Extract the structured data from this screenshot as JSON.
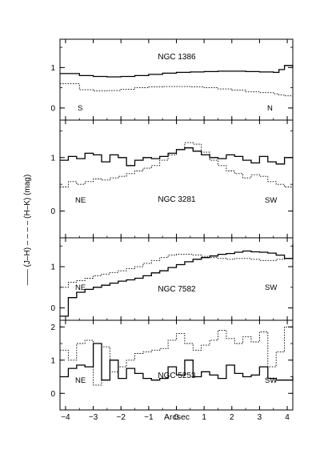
{
  "figure": {
    "ylabel": "—— (J–H)   – – – – (H–K) (mag)",
    "xlabel": "Arcsec"
  },
  "chart_data": {
    "type": "line",
    "style": "step",
    "shared_x_axis": {
      "label": "Arcsec",
      "range": [
        -4.2,
        4.2
      ],
      "ticks": [
        -4,
        -3,
        -2,
        -1,
        0,
        1,
        2,
        3,
        4
      ],
      "tick_labels": [
        "−4",
        "−3",
        "−2",
        "−1",
        "0",
        "1",
        "2",
        "3",
        "4"
      ]
    },
    "series_encoding": {
      "solid": "(J–H)",
      "dotted": "(H–K)"
    },
    "panels": [
      {
        "title": "NGC 1386",
        "left_label": "S",
        "right_label": "N",
        "ylim": [
          -0.3,
          1.7
        ],
        "yticks": [
          0,
          1
        ],
        "x": [
          -4.2,
          -3.5,
          -3.0,
          -2.5,
          -2.0,
          -1.5,
          -1.0,
          -0.5,
          0.0,
          0.5,
          1.0,
          1.5,
          2.0,
          2.5,
          3.0,
          3.5,
          3.7,
          3.9,
          4.2
        ],
        "series": [
          {
            "name": "(J–H)",
            "style": "solid",
            "values": [
              0.85,
              0.8,
              0.78,
              0.77,
              0.78,
              0.8,
              0.83,
              0.86,
              0.88,
              0.89,
              0.9,
              0.91,
              0.91,
              0.9,
              0.89,
              0.88,
              0.95,
              1.05,
              1.0
            ]
          },
          {
            "name": "(H–K)",
            "style": "dotted",
            "values": [
              0.6,
              0.45,
              0.42,
              0.43,
              0.46,
              0.5,
              0.52,
              0.53,
              0.53,
              0.52,
              0.5,
              0.47,
              0.44,
              0.4,
              0.38,
              0.35,
              0.32,
              0.3,
              0.28
            ]
          }
        ]
      },
      {
        "title": "NGC 3281",
        "left_label": "NE",
        "right_label": "SW",
        "ylim": [
          -0.5,
          1.7
        ],
        "yticks": [
          0,
          1
        ],
        "x": [
          -4.2,
          -3.9,
          -3.6,
          -3.3,
          -3.0,
          -2.7,
          -2.4,
          -2.1,
          -1.8,
          -1.5,
          -1.2,
          -0.9,
          -0.6,
          -0.3,
          0.0,
          0.3,
          0.6,
          0.9,
          1.2,
          1.5,
          1.8,
          2.1,
          2.4,
          2.7,
          3.0,
          3.3,
          3.6,
          3.9,
          4.2
        ],
        "series": [
          {
            "name": "(J–H)",
            "style": "solid",
            "values": [
              0.95,
              1.02,
              0.98,
              1.08,
              1.05,
              0.92,
              1.05,
              1.0,
              0.85,
              0.95,
              1.0,
              0.98,
              1.02,
              1.08,
              1.15,
              1.18,
              1.12,
              1.05,
              1.0,
              0.98,
              1.05,
              1.02,
              0.95,
              0.9,
              1.02,
              0.92,
              0.88,
              1.0,
              1.0
            ]
          },
          {
            "name": "(H–K)",
            "style": "dotted",
            "values": [
              0.45,
              0.55,
              0.5,
              0.55,
              0.6,
              0.58,
              0.62,
              0.65,
              0.7,
              0.75,
              0.8,
              0.85,
              0.95,
              1.05,
              1.15,
              1.28,
              1.25,
              1.1,
              0.95,
              0.85,
              0.75,
              0.7,
              0.62,
              0.68,
              0.65,
              0.55,
              0.5,
              0.45,
              0.42
            ]
          }
        ]
      },
      {
        "title": "NGC 7582",
        "left_label": "NE",
        "right_label": "SW",
        "ylim": [
          -0.3,
          1.7
        ],
        "yticks": [
          0,
          1
        ],
        "x": [
          -4.2,
          -3.9,
          -3.6,
          -3.3,
          -3.0,
          -2.7,
          -2.4,
          -2.1,
          -1.8,
          -1.5,
          -1.2,
          -0.9,
          -0.6,
          -0.3,
          0.0,
          0.3,
          0.6,
          0.9,
          1.2,
          1.5,
          1.8,
          2.1,
          2.4,
          2.7,
          3.0,
          3.3,
          3.6,
          3.9,
          4.2
        ],
        "series": [
          {
            "name": "(J–H)",
            "style": "solid",
            "values": [
              -0.2,
              0.25,
              0.38,
              0.45,
              0.5,
              0.55,
              0.6,
              0.65,
              0.68,
              0.72,
              0.78,
              0.85,
              0.9,
              0.98,
              1.05,
              1.12,
              1.18,
              1.22,
              1.26,
              1.3,
              1.32,
              1.35,
              1.38,
              1.36,
              1.35,
              1.33,
              1.28,
              1.2,
              1.55
            ]
          },
          {
            "name": "(H–K)",
            "style": "dotted",
            "values": [
              0.5,
              0.62,
              0.66,
              0.72,
              0.78,
              0.82,
              0.86,
              0.9,
              0.95,
              1.0,
              1.08,
              1.15,
              1.22,
              1.28,
              1.3,
              1.3,
              1.28,
              1.25,
              1.22,
              1.2,
              1.18,
              1.2,
              1.2,
              1.18,
              1.15,
              1.15,
              1.18,
              1.2,
              1.62
            ]
          }
        ]
      },
      {
        "title": "NGC 5253",
        "left_label": "NE",
        "right_label": "SW",
        "ylim": [
          -0.5,
          2.2
        ],
        "yticks": [
          0,
          1,
          2
        ],
        "x": [
          -4.2,
          -3.9,
          -3.6,
          -3.3,
          -3.0,
          -2.7,
          -2.4,
          -2.1,
          -1.8,
          -1.5,
          -1.2,
          -0.9,
          -0.6,
          -0.3,
          0.0,
          0.3,
          0.6,
          0.9,
          1.2,
          1.5,
          1.8,
          2.1,
          2.4,
          2.7,
          3.0,
          3.3,
          3.6,
          3.9,
          4.2
        ],
        "series": [
          {
            "name": "(J–H)",
            "style": "solid",
            "values": [
              0.5,
              0.75,
              0.85,
              0.8,
              1.5,
              0.4,
              1.0,
              0.45,
              0.75,
              0.6,
              0.45,
              0.4,
              0.45,
              0.8,
              0.55,
              1.0,
              0.5,
              0.65,
              0.55,
              0.45,
              0.85,
              0.6,
              0.5,
              0.55,
              0.8,
              0.45,
              0.4,
              0.4,
              0.5
            ]
          },
          {
            "name": "(H–K)",
            "style": "dotted",
            "values": [
              1.3,
              1.0,
              1.5,
              1.6,
              0.25,
              1.4,
              0.65,
              0.8,
              1.0,
              1.2,
              1.25,
              1.3,
              1.35,
              1.6,
              1.8,
              1.5,
              1.3,
              1.45,
              1.6,
              1.9,
              1.65,
              1.5,
              1.7,
              1.55,
              1.85,
              0.8,
              1.25,
              2.0,
              1.95
            ]
          }
        ]
      }
    ]
  }
}
